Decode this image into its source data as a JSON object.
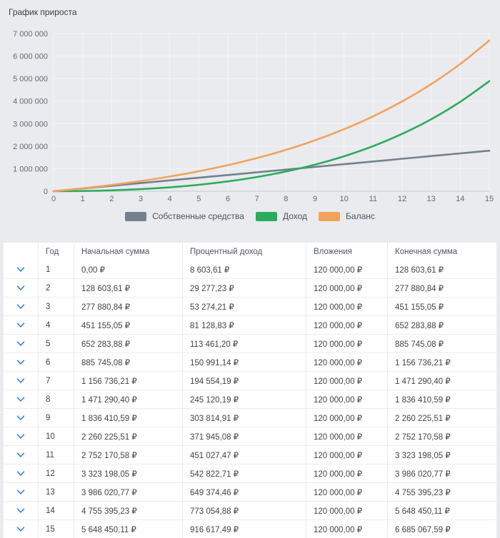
{
  "page": {
    "title": "График прироста"
  },
  "chart_data": {
    "type": "line",
    "title": "График прироста",
    "xlabel": "",
    "ylabel": "",
    "xlim": [
      0,
      15
    ],
    "ylim": [
      0,
      7000000
    ],
    "grid": true,
    "legend_position": "bottom",
    "x": [
      0,
      1,
      2,
      3,
      4,
      5,
      6,
      7,
      8,
      9,
      10,
      11,
      12,
      13,
      14,
      15
    ],
    "xtick_labels": [
      "0",
      "1",
      "2",
      "3",
      "4",
      "5",
      "6",
      "7",
      "8",
      "9",
      "10",
      "11",
      "12",
      "13",
      "14",
      "15"
    ],
    "yticks": [
      0,
      1000000,
      2000000,
      3000000,
      4000000,
      5000000,
      6000000,
      7000000
    ],
    "ytick_labels": [
      "0",
      "1 000 000",
      "2 000 000",
      "3 000 000",
      "4 000 000",
      "5 000 000",
      "6 000 000",
      "7 000 000"
    ],
    "colors": {
      "grid": "#f4f5f7",
      "axis": "#c6cacf",
      "tick_text": "#65696e"
    },
    "series": [
      {
        "name": "Собственные средства",
        "color": "#75808F",
        "values": [
          0,
          120000,
          240000,
          360000,
          480000,
          600000,
          720000,
          840000,
          960000,
          1080000,
          1200000,
          1320000,
          1440000,
          1560000,
          1680000,
          1800000
        ]
      },
      {
        "name": "Доход",
        "color": "#2BAB5E",
        "values": [
          0,
          8603.61,
          37880.84,
          91155.05,
          172283.88,
          285745.08,
          436736.21,
          631290.4,
          876410.59,
          1180225.51,
          1552170.58,
          2003198.05,
          2546020.77,
          3195395.23,
          3968450.11,
          4885067.59
        ]
      },
      {
        "name": "Баланс",
        "color": "#F3A25E",
        "values": [
          0,
          128603.61,
          277880.84,
          451155.05,
          652283.88,
          885745.08,
          1156736.21,
          1471290.4,
          1836410.59,
          2260225.51,
          2752170.58,
          3323198.05,
          3986020.77,
          4755395.23,
          5648450.11,
          6685067.59
        ]
      }
    ]
  },
  "table": {
    "chevron_color": "#2F7ED8",
    "columns": [
      "",
      "Год",
      "Начальная сумма",
      "Процентный доход",
      "Вложения",
      "Конечная сумма"
    ],
    "rows": [
      [
        "1",
        "0,00 ₽",
        "8 603,61 ₽",
        "120 000,00 ₽",
        "128 603,61 ₽"
      ],
      [
        "2",
        "128 603,61 ₽",
        "29 277,23 ₽",
        "120 000,00 ₽",
        "277 880,84 ₽"
      ],
      [
        "3",
        "277 880,84 ₽",
        "53 274,21 ₽",
        "120 000,00 ₽",
        "451 155,05 ₽"
      ],
      [
        "4",
        "451 155,05 ₽",
        "81 128,83 ₽",
        "120 000,00 ₽",
        "652 283,88 ₽"
      ],
      [
        "5",
        "652 283,88 ₽",
        "113 461,20 ₽",
        "120 000,00 ₽",
        "885 745,08 ₽"
      ],
      [
        "6",
        "885 745,08 ₽",
        "150 991,14 ₽",
        "120 000,00 ₽",
        "1 156 736,21 ₽"
      ],
      [
        "7",
        "1 156 736,21 ₽",
        "194 554,19 ₽",
        "120 000,00 ₽",
        "1 471 290,40 ₽"
      ],
      [
        "8",
        "1 471 290,40 ₽",
        "245 120,19 ₽",
        "120 000,00 ₽",
        "1 836 410,59 ₽"
      ],
      [
        "9",
        "1 836 410,59 ₽",
        "303 814,91 ₽",
        "120 000,00 ₽",
        "2 260 225,51 ₽"
      ],
      [
        "10",
        "2 260 225,51 ₽",
        "371 945,08 ₽",
        "120 000,00 ₽",
        "2 752 170,58 ₽"
      ],
      [
        "11",
        "2 752 170,58 ₽",
        "451 027,47 ₽",
        "120 000,00 ₽",
        "3 323 198,05 ₽"
      ],
      [
        "12",
        "3 323 198,05 ₽",
        "542 822,71 ₽",
        "120 000,00 ₽",
        "3 986 020,77 ₽"
      ],
      [
        "13",
        "3 986 020,77 ₽",
        "649 374,46 ₽",
        "120 000,00 ₽",
        "4 755 395,23 ₽"
      ],
      [
        "14",
        "4 755 395,23 ₽",
        "773 054,88 ₽",
        "120 000,00 ₽",
        "5 648 450,11 ₽"
      ],
      [
        "15",
        "5 648 450,11 ₽",
        "916 617,49 ₽",
        "120 000,00 ₽",
        "6 685 067,59 ₽"
      ]
    ]
  }
}
